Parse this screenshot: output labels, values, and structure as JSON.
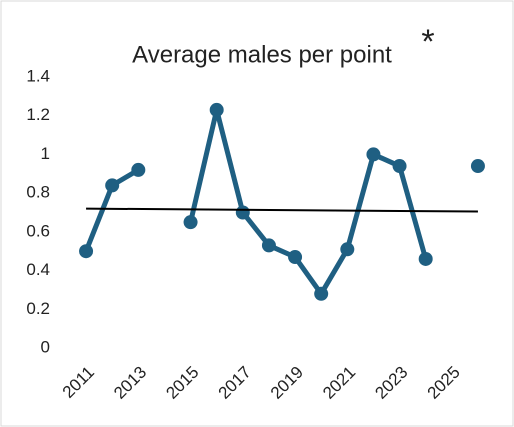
{
  "chart_data": {
    "type": "line",
    "title": "Average males per point",
    "annotation": "*",
    "categories": [
      "2011",
      null,
      "2013",
      null,
      "2015",
      null,
      "2017",
      null,
      "2019",
      null,
      "2021",
      null,
      "2023",
      null,
      "2025",
      null
    ],
    "series": [
      {
        "name": "Average males per point",
        "color": "#1f5f82",
        "values": [
          0.5,
          0.84,
          0.92,
          null,
          0.65,
          1.23,
          0.7,
          0.53,
          0.47,
          0.28,
          0.51,
          1.0,
          0.94,
          0.46,
          null,
          0.94
        ]
      }
    ],
    "trendline": {
      "color": "#000000",
      "values": [
        0.72,
        0.705
      ]
    },
    "ylim": [
      0,
      1.4
    ],
    "yticks": [
      0,
      0.2,
      0.4,
      0.6,
      0.8,
      1,
      1.2,
      1.4
    ],
    "grid": false
  }
}
